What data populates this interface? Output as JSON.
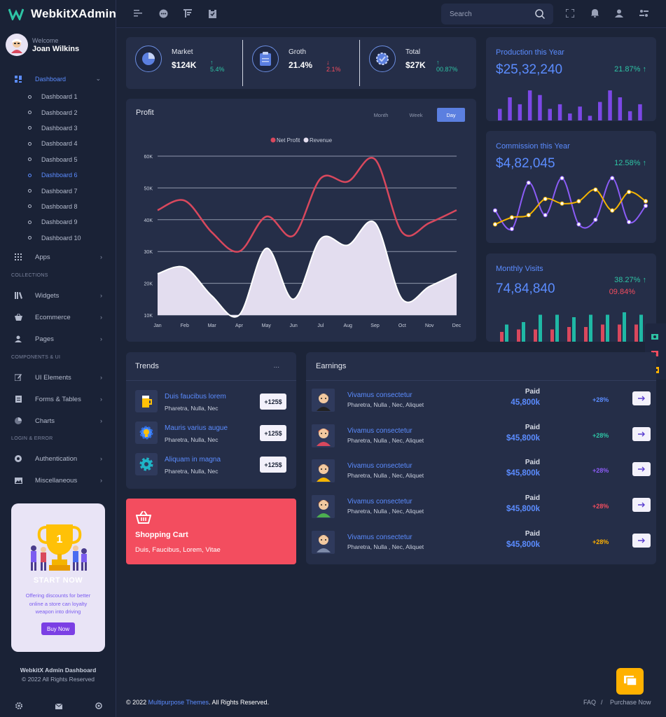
{
  "app": {
    "title": "WebkitXAdmin"
  },
  "user": {
    "welcome": "Welcome",
    "name": "Joan Wilkins"
  },
  "sidebar": {
    "dashboard_label": "Dashboard",
    "sub_items": [
      "Dashboard 1",
      "Dashboard 2",
      "Dashboard 3",
      "Dashboard 4",
      "Dashboard 5",
      "Dashboard 6",
      "Dashboard 7",
      "Dashboard 8",
      "Dashboard 9",
      "Dashboard 10"
    ],
    "apps_label": "Apps",
    "sections": {
      "collections": "COLLECTIONS",
      "components": "COMPONENTS & UI",
      "login": "LOGIN & ERROR"
    },
    "collections_items": [
      "Widgets",
      "Ecommerce",
      "Pages"
    ],
    "components_items": [
      "UI Elements",
      "Forms & Tables",
      "Charts"
    ],
    "login_items": [
      "Authentication",
      "Miscellaneous"
    ]
  },
  "promo": {
    "title": "START NOW",
    "text": "Offering discounts for better online a store can loyalty weapon into driving",
    "button": "Buy Now"
  },
  "side_footer": {
    "line1": "WebkitX Admin Dashboard",
    "line2": "© 2022 All Rights Reserved"
  },
  "search": {
    "placeholder": "Search"
  },
  "stats": [
    {
      "label": "Market",
      "value": "$124K",
      "delta": "5.4%",
      "direction": "up"
    },
    {
      "label": "Groth",
      "value": "21.4%",
      "delta": "2.1%",
      "direction": "down"
    },
    {
      "label": "Total",
      "value": "$27K",
      "delta": "00.87%",
      "direction": "up"
    }
  ],
  "profit": {
    "title": "Profit",
    "tabs": [
      "Month",
      "Week",
      "Day"
    ],
    "active_tab": "Day"
  },
  "chart_data": {
    "type": "area",
    "title": "Profit",
    "categories": [
      "Jan",
      "Feb",
      "Mar",
      "Apr",
      "May",
      "Jun",
      "Jul",
      "Aug",
      "Sep",
      "Oct",
      "Nov",
      "Dec"
    ],
    "y_ticks": [
      "10K",
      "20K",
      "30K",
      "40K",
      "50K",
      "60K"
    ],
    "ylim": [
      10000,
      60000
    ],
    "legend": "top-center",
    "series": [
      {
        "name": "Net Profit",
        "type": "line",
        "color": "#d9485d",
        "values": [
          43000,
          46000,
          36000,
          30000,
          41000,
          35000,
          53000,
          52000,
          59000,
          36000,
          39000,
          43000
        ]
      },
      {
        "name": "Revenue",
        "type": "area",
        "color": "#e3ddef",
        "values": [
          23000,
          25000,
          16000,
          10000,
          31000,
          15000,
          34000,
          32000,
          39000,
          15000,
          19000,
          23000
        ]
      }
    ]
  },
  "production": {
    "title": "Production this Year",
    "value": "$25,32,240",
    "pct": "21.87%",
    "bars": [
      5,
      10,
      7,
      13,
      11,
      5,
      7,
      3,
      6,
      2,
      8,
      13,
      10,
      4,
      7
    ]
  },
  "commission": {
    "title": "Commission this Year",
    "value": "$4,82,045",
    "pct": "12.58%",
    "purple": [
      40,
      0,
      100,
      30,
      110,
      10,
      20,
      110,
      15,
      50
    ],
    "yellow": [
      10,
      25,
      30,
      65,
      55,
      60,
      85,
      40,
      80,
      60
    ]
  },
  "visits": {
    "title": "Monthly Visits",
    "value": "74,84,840",
    "pct_up": "38.27%",
    "pct_down": "09.84%",
    "bars": [
      [
        4,
        7
      ],
      [
        5,
        8
      ],
      [
        5,
        11
      ],
      [
        5,
        11
      ],
      [
        6,
        10
      ],
      [
        6,
        11
      ],
      [
        7,
        11
      ],
      [
        7,
        12
      ],
      [
        7,
        11
      ],
      [
        6,
        10
      ]
    ]
  },
  "trends": {
    "title": "Trends",
    "more": "...",
    "items": [
      {
        "title": "Duis faucibus lorem",
        "sub": "Pharetra, Nulla, Nec",
        "badge": "+125$"
      },
      {
        "title": "Mauris varius augue",
        "sub": "Pharetra, Nulla, Nec",
        "badge": "+125$"
      },
      {
        "title": "Aliquam in magna",
        "sub": "Pharetra, Nulla, Nec",
        "badge": "+125$"
      }
    ]
  },
  "cart": {
    "title": "Shopping Cart",
    "sub": "Duis, Faucibus, Lorem, Vitae"
  },
  "earnings": {
    "title": "Earnings",
    "items": [
      {
        "title": "Vivamus consectetur",
        "sub": "Pharetra, Nulla , Nec, Aliquet",
        "paid": "Paid",
        "amount": "45,800k",
        "pct": "+28%",
        "pct_color": "#5b8cff"
      },
      {
        "title": "Vivamus consectetur",
        "sub": "Pharetra, Nulla , Nec, Aliquet",
        "paid": "Paid",
        "amount": "$45,800k",
        "pct": "+28%",
        "pct_color": "#2ec4a5"
      },
      {
        "title": "Vivamus consectetur",
        "sub": "Pharetra, Nulla , Nec, Aliquet",
        "paid": "Paid",
        "amount": "$45,800k",
        "pct": "+28%",
        "pct_color": "#8b5cf6"
      },
      {
        "title": "Vivamus consectetur",
        "sub": "Pharetra, Nulla , Nec, Aliquet",
        "paid": "Paid",
        "amount": "$45,800k",
        "pct": "+28%",
        "pct_color": "#f34d5f"
      },
      {
        "title": "Vivamus consectetur",
        "sub": "Pharetra, Nulla , Nec, Aliquet",
        "paid": "Paid",
        "amount": "$45,800k",
        "pct": "+28%",
        "pct_color": "#ffb100"
      }
    ]
  },
  "footer": {
    "copy": "© 2022 ",
    "link": "Multipurpose Themes",
    "rest": ". All Rights Reserved.",
    "faq": "FAQ",
    "sep": "/",
    "purchase": "Purchase Now"
  },
  "colors": {
    "accent": "#5b8cff",
    "up": "#2ec4a5",
    "down": "#f34d5f",
    "purple": "#8b5cf6",
    "yellow": "#ffb100"
  }
}
